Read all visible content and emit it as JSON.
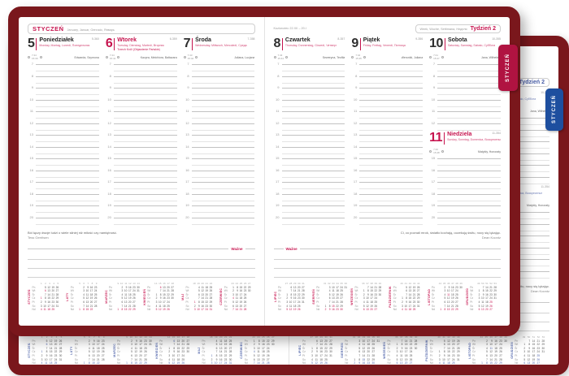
{
  "tabs": {
    "label": "STYCZEŃ"
  },
  "labels": {
    "wazne": "Ważne"
  },
  "colors": {
    "cover": "#7a171c",
    "red_accent": "#c6134e",
    "red_tab": "#b01341",
    "blue_accent": "#4a5fa8",
    "blue_tab": "#1e4f9f"
  },
  "days": [
    {
      "num": "5",
      "name": "Poniedziałek",
      "langs": "Monday, Montag, Lunedì, Понедельник",
      "ordinal": "5-360",
      "names": "Edwarda, Szymona",
      "sun": [
        "7:44",
        "15:39"
      ],
      "red": false
    },
    {
      "num": "6",
      "name": "Wtorek",
      "langs": "Tuesday, Dienstag, Martedì, Вторник",
      "holiday": "Trzech Króli (Objawienie Pańskie)",
      "ordinal": "6-359",
      "names": "Kacpra, Melchiora, Baltazara",
      "sun": [
        "7:44",
        "15:41"
      ],
      "red": true
    },
    {
      "num": "7",
      "name": "Środa",
      "langs": "Wednesday, Mittwoch, Mercoledì, Среда",
      "ordinal": "7-358",
      "names": "Juliana, Lucjana",
      "sun": [
        "7:43",
        "15:42"
      ],
      "red": false
    },
    {
      "num": "8",
      "name": "Czwartek",
      "langs": "Thursday, Donnerstag, Giovedì, Четверг",
      "ordinal": "8-357",
      "names": "Seweryna, Teofila",
      "sun": [
        "7:43",
        "15:44"
      ],
      "red": false
    },
    {
      "num": "9",
      "name": "Piątek",
      "langs": "Friday, Freitag, Venerdì, Пятница",
      "ordinal": "9-356",
      "names": "Weroniki, Juliana",
      "sun": [
        "7:42",
        "15:45"
      ],
      "red": false
    },
    {
      "num": "10",
      "name": "Sobota",
      "langs": "Saturday, Samstag, Sabato, Суббота",
      "ordinal": "10-355",
      "names": "Jana, Wilhelma",
      "sun": [
        "7:41",
        "15:47"
      ],
      "red": false
    },
    {
      "num": "11",
      "name": "Niedziela",
      "langs": "Sunday, Sonntag, Domenica, Воскресенье",
      "ordinal": "11-354",
      "names": "Matyldy, Honoraty",
      "sun": [
        "7:40",
        "15:48"
      ],
      "red": true
    }
  ],
  "pages": [
    {
      "side": "left",
      "header": {
        "month": "STYCZEŃ",
        "month_langs": "January, Januar, Gennaio, Январь"
      },
      "columns": [
        {
          "segments": [
            {
              "day": 0,
              "hours": [
                7,
                20
              ]
            }
          ]
        },
        {
          "segments": [
            {
              "day": 1,
              "hours": [
                7,
                20
              ]
            }
          ]
        },
        {
          "segments": [
            {
              "day": 2,
              "hours": [
                7,
                20
              ]
            }
          ]
        }
      ],
      "quote": {
        "text": "Ból łączy dwoje ludzi o wiele silniej niż miłość czy namiętność.",
        "author": "Tess Gerritsen",
        "align": "left"
      },
      "wazne_align": "right",
      "months": [
        0,
        1,
        2,
        3,
        4,
        5
      ]
    },
    {
      "side": "right",
      "header": {
        "zodiac": "Koziorożec 22.XII – 20.I",
        "week_langs": "Week, Woche, Settimana, Неделя",
        "week_label": "Tydzień 2"
      },
      "columns": [
        {
          "segments": [
            {
              "day": 3,
              "hours": [
                7,
                20
              ]
            }
          ]
        },
        {
          "segments": [
            {
              "day": 4,
              "hours": [
                7,
                20
              ]
            }
          ]
        },
        {
          "segments": [
            {
              "day": 5,
              "hours": [
                7,
                12
              ]
            },
            {
              "day": 6,
              "hours": [
                15,
                20
              ]
            }
          ]
        }
      ],
      "quote": {
        "text": "Ci, co poznali mrok, światło kochają, oczekują świtu, nocy się lękając.",
        "author": "Dean Koontz",
        "align": "right"
      },
      "wazne_align": "left",
      "months": [
        6,
        7,
        8,
        9,
        10,
        11
      ]
    }
  ],
  "minical": {
    "dow_labels": [
      "Pn",
      "Wt",
      "Śr",
      "Cz",
      "Pt",
      "So",
      "Nd"
    ],
    "months": [
      {
        "name": "STYCZEŃ",
        "weeks": [
          1,
          2,
          3,
          4,
          5,
          ""
        ],
        "holidays": [
          1,
          6
        ],
        "rows": [
          [
            "",
            5,
            12,
            19,
            26,
            ""
          ],
          [
            "",
            6,
            13,
            20,
            27,
            ""
          ],
          [
            "",
            7,
            14,
            21,
            28,
            ""
          ],
          [
            1,
            8,
            15,
            22,
            29,
            ""
          ],
          [
            2,
            9,
            16,
            23,
            30,
            ""
          ],
          [
            3,
            10,
            17,
            24,
            31,
            ""
          ],
          [
            4,
            11,
            18,
            25,
            "",
            ""
          ]
        ]
      },
      {
        "name": "LUTY",
        "weeks": [
          5,
          6,
          7,
          8,
          9,
          ""
        ],
        "holidays": [],
        "rows": [
          [
            "",
            2,
            9,
            16,
            23,
            ""
          ],
          [
            "",
            3,
            10,
            17,
            24,
            ""
          ],
          [
            "",
            4,
            11,
            18,
            25,
            ""
          ],
          [
            "",
            5,
            12,
            19,
            26,
            ""
          ],
          [
            "",
            6,
            13,
            20,
            27,
            ""
          ],
          [
            "",
            7,
            14,
            21,
            28,
            ""
          ],
          [
            1,
            8,
            15,
            22,
            "",
            ""
          ]
        ]
      },
      {
        "name": "MARZEC",
        "weeks": [
          9,
          10,
          11,
          12,
          13,
          14
        ],
        "holidays": [],
        "rows": [
          [
            "",
            2,
            9,
            16,
            23,
            30
          ],
          [
            "",
            3,
            10,
            17,
            24,
            31
          ],
          [
            "",
            4,
            11,
            18,
            25,
            ""
          ],
          [
            "",
            5,
            12,
            19,
            26,
            ""
          ],
          [
            "",
            6,
            13,
            20,
            27,
            ""
          ],
          [
            "",
            7,
            14,
            21,
            28,
            ""
          ],
          [
            1,
            8,
            15,
            22,
            29,
            ""
          ]
        ]
      },
      {
        "name": "KWIECIEŃ",
        "weeks": [
          14,
          15,
          16,
          17,
          18,
          ""
        ],
        "holidays": [
          6
        ],
        "rows": [
          [
            "",
            6,
            13,
            20,
            27,
            ""
          ],
          [
            "",
            7,
            14,
            21,
            28,
            ""
          ],
          [
            1,
            8,
            15,
            22,
            29,
            ""
          ],
          [
            2,
            9,
            16,
            23,
            30,
            ""
          ],
          [
            3,
            10,
            17,
            24,
            "",
            ""
          ],
          [
            4,
            11,
            18,
            25,
            "",
            ""
          ],
          [
            5,
            12,
            19,
            26,
            "",
            ""
          ]
        ]
      },
      {
        "name": "MAJ",
        "weeks": [
          18,
          19,
          20,
          21,
          22,
          ""
        ],
        "holidays": [
          1,
          3
        ],
        "rows": [
          [
            "",
            4,
            11,
            18,
            25,
            ""
          ],
          [
            "",
            5,
            12,
            19,
            26,
            ""
          ],
          [
            "",
            6,
            13,
            20,
            27,
            ""
          ],
          [
            "",
            7,
            14,
            21,
            28,
            ""
          ],
          [
            1,
            8,
            15,
            22,
            29,
            ""
          ],
          [
            2,
            9,
            16,
            23,
            30,
            ""
          ],
          [
            3,
            10,
            17,
            24,
            31,
            ""
          ]
        ]
      },
      {
        "name": "CZERWIEC",
        "weeks": [
          23,
          24,
          25,
          26,
          27,
          ""
        ],
        "holidays": [
          4
        ],
        "rows": [
          [
            1,
            8,
            15,
            22,
            29,
            ""
          ],
          [
            2,
            9,
            16,
            23,
            30,
            ""
          ],
          [
            3,
            10,
            17,
            24,
            "",
            ""
          ],
          [
            4,
            11,
            18,
            25,
            "",
            ""
          ],
          [
            5,
            12,
            19,
            26,
            "",
            ""
          ],
          [
            6,
            13,
            20,
            27,
            "",
            ""
          ],
          [
            7,
            14,
            21,
            28,
            "",
            ""
          ]
        ]
      },
      {
        "name": "LIPIEC",
        "weeks": [
          27,
          28,
          29,
          30,
          31,
          ""
        ],
        "holidays": [],
        "rows": [
          [
            "",
            6,
            13,
            20,
            27,
            ""
          ],
          [
            "",
            7,
            14,
            21,
            28,
            ""
          ],
          [
            1,
            8,
            15,
            22,
            29,
            ""
          ],
          [
            2,
            9,
            16,
            23,
            30,
            ""
          ],
          [
            3,
            10,
            17,
            24,
            31,
            ""
          ],
          [
            4,
            11,
            18,
            25,
            "",
            ""
          ],
          [
            5,
            12,
            19,
            26,
            "",
            ""
          ]
        ]
      },
      {
        "name": "SIERPIEŃ",
        "weeks": [
          31,
          32,
          33,
          34,
          35,
          36
        ],
        "holidays": [
          15
        ],
        "rows": [
          [
            "",
            3,
            10,
            17,
            24,
            31
          ],
          [
            "",
            4,
            11,
            18,
            25,
            ""
          ],
          [
            "",
            5,
            12,
            19,
            26,
            ""
          ],
          [
            "",
            6,
            13,
            20,
            27,
            ""
          ],
          [
            "",
            7,
            14,
            21,
            28,
            ""
          ],
          [
            1,
            8,
            15,
            22,
            29,
            ""
          ],
          [
            2,
            9,
            16,
            23,
            30,
            ""
          ]
        ]
      },
      {
        "name": "WRZESIEŃ",
        "weeks": [
          36,
          37,
          38,
          39,
          40,
          ""
        ],
        "holidays": [],
        "rows": [
          [
            "",
            7,
            14,
            21,
            28,
            ""
          ],
          [
            1,
            8,
            15,
            22,
            29,
            ""
          ],
          [
            2,
            9,
            16,
            23,
            30,
            ""
          ],
          [
            3,
            10,
            17,
            24,
            "",
            ""
          ],
          [
            4,
            11,
            18,
            25,
            "",
            ""
          ],
          [
            5,
            12,
            19,
            26,
            "",
            ""
          ],
          [
            6,
            13,
            20,
            27,
            "",
            ""
          ]
        ]
      },
      {
        "name": "PAŹDZIERNIK",
        "weeks": [
          40,
          41,
          42,
          43,
          44,
          ""
        ],
        "holidays": [],
        "rows": [
          [
            "",
            5,
            12,
            19,
            26,
            ""
          ],
          [
            "",
            6,
            13,
            20,
            27,
            ""
          ],
          [
            "",
            7,
            14,
            21,
            28,
            ""
          ],
          [
            1,
            8,
            15,
            22,
            29,
            ""
          ],
          [
            2,
            9,
            16,
            23,
            30,
            ""
          ],
          [
            3,
            10,
            17,
            24,
            31,
            ""
          ],
          [
            4,
            11,
            18,
            25,
            "",
            ""
          ]
        ]
      },
      {
        "name": "LISTOPAD",
        "weeks": [
          44,
          45,
          46,
          47,
          48,
          49
        ],
        "holidays": [
          1,
          11
        ],
        "rows": [
          [
            "",
            2,
            9,
            16,
            23,
            30
          ],
          [
            "",
            3,
            10,
            17,
            24,
            ""
          ],
          [
            "",
            4,
            11,
            18,
            25,
            ""
          ],
          [
            "",
            5,
            12,
            19,
            26,
            ""
          ],
          [
            "",
            6,
            13,
            20,
            27,
            ""
          ],
          [
            "",
            7,
            14,
            21,
            28,
            ""
          ],
          [
            1,
            8,
            15,
            22,
            29,
            ""
          ]
        ]
      },
      {
        "name": "GRUDZIEŃ",
        "weeks": [
          49,
          50,
          51,
          52,
          53,
          ""
        ],
        "holidays": [
          25,
          26
        ],
        "rows": [
          [
            "",
            7,
            14,
            21,
            28,
            ""
          ],
          [
            1,
            8,
            15,
            22,
            29,
            ""
          ],
          [
            2,
            9,
            16,
            23,
            30,
            ""
          ],
          [
            3,
            10,
            17,
            24,
            31,
            ""
          ],
          [
            4,
            11,
            18,
            25,
            "",
            ""
          ],
          [
            5,
            12,
            19,
            26,
            "",
            ""
          ],
          [
            6,
            13,
            20,
            27,
            "",
            ""
          ]
        ]
      }
    ]
  }
}
